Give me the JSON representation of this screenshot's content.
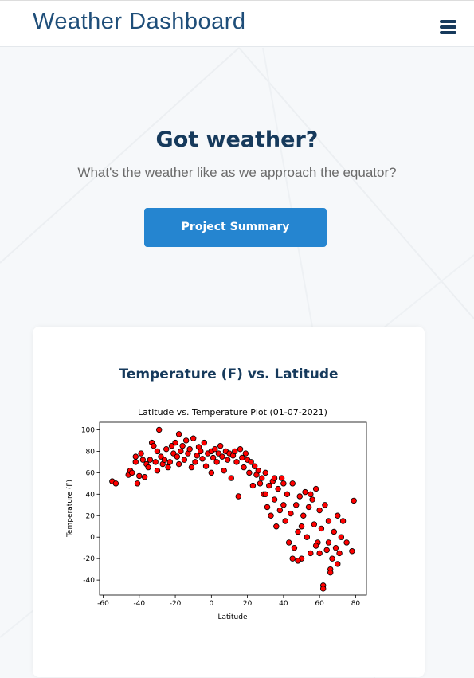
{
  "header": {
    "title": "Weather Dashboard"
  },
  "hero": {
    "title": "Got weather?",
    "subtitle": "What's the weather like as we approach the equator?",
    "button": "Project Summary"
  },
  "card": {
    "title": "Temperature (F) vs. Latitude"
  },
  "chart_data": {
    "type": "scatter",
    "title": "Latitude vs. Temperature Plot (01-07-2021)",
    "x_label": "Latitude",
    "y_label": "Temperature (F)",
    "xlim": [
      -62,
      86
    ],
    "ylim": [
      -54,
      107
    ],
    "xticks": [
      -60,
      -40,
      -20,
      0,
      20,
      40,
      60,
      80
    ],
    "yticks": [
      -40,
      -20,
      0,
      20,
      40,
      60,
      80,
      100
    ],
    "color": "#ff0000",
    "edgecolor": "#000000",
    "x": [
      -55,
      -53,
      -46,
      -45,
      -44,
      -42,
      -42,
      -41,
      -40,
      -39,
      -38,
      -37,
      -36,
      -35,
      -34,
      -33,
      -32,
      -31,
      -30,
      -30,
      -29,
      -28,
      -27,
      -26,
      -25,
      -24,
      -23,
      -22,
      -21,
      -20,
      -19,
      -18,
      -18,
      -17,
      -16,
      -15,
      -14,
      -13,
      -12,
      -11,
      -10,
      -9,
      -8,
      -7,
      -6,
      -5,
      -4,
      -3,
      -2,
      0,
      0,
      1,
      2,
      3,
      4,
      5,
      6,
      7,
      8,
      9,
      10,
      11,
      12,
      13,
      14,
      15,
      16,
      17,
      18,
      19,
      20,
      21,
      22,
      23,
      24,
      25,
      26,
      27,
      28,
      29,
      30,
      31,
      32,
      33,
      34,
      35,
      36,
      37,
      38,
      39,
      40,
      41,
      42,
      43,
      44,
      45,
      46,
      47,
      48,
      49,
      50,
      51,
      52,
      53,
      54,
      55,
      56,
      57,
      58,
      59,
      60,
      61,
      62,
      62,
      63,
      64,
      65,
      66,
      67,
      68,
      69,
      70,
      71,
      72,
      73,
      75,
      78,
      79,
      55,
      45,
      50,
      40,
      35,
      30,
      60,
      70,
      65,
      48,
      58,
      66
    ],
    "values": [
      52,
      50,
      58,
      62,
      60,
      75,
      70,
      50,
      57,
      78,
      72,
      56,
      68,
      65,
      72,
      88,
      85,
      70,
      62,
      80,
      100,
      75,
      68,
      72,
      82,
      65,
      70,
      85,
      78,
      88,
      75,
      96,
      68,
      80,
      85,
      72,
      90,
      78,
      82,
      65,
      92,
      70,
      76,
      84,
      80,
      73,
      88,
      66,
      78,
      80,
      60,
      74,
      82,
      70,
      78,
      85,
      75,
      62,
      80,
      72,
      78,
      55,
      76,
      80,
      70,
      38,
      82,
      74,
      65,
      78,
      72,
      60,
      70,
      48,
      66,
      58,
      62,
      50,
      55,
      40,
      60,
      28,
      48,
      20,
      52,
      35,
      10,
      45,
      25,
      55,
      30,
      15,
      40,
      -5,
      22,
      50,
      -10,
      30,
      5,
      38,
      -20,
      20,
      42,
      0,
      28,
      -15,
      35,
      12,
      45,
      -5,
      25,
      8,
      -45,
      -48,
      30,
      -12,
      15,
      -30,
      -20,
      5,
      -10,
      20,
      -15,
      0,
      15,
      -5,
      -13,
      34,
      40,
      -20,
      10,
      50,
      55,
      40,
      -15,
      -25,
      -5,
      -22,
      -8,
      -33
    ]
  }
}
